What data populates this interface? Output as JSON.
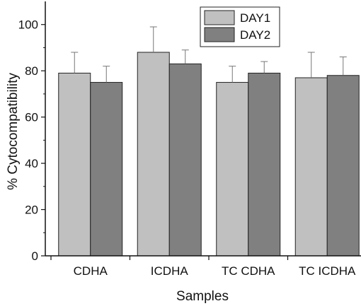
{
  "chart_data": {
    "type": "bar",
    "title": "",
    "xlabel": "Samples",
    "ylabel": "% Cytocompatibility",
    "ylim": [
      0,
      110
    ],
    "yticks": [
      0,
      20,
      40,
      60,
      80,
      100
    ],
    "categories": [
      "CDHA",
      "ICDHA",
      "TC CDHA",
      "TC ICDHA"
    ],
    "series": [
      {
        "name": "DAY1",
        "values": [
          79,
          88,
          75,
          77
        ],
        "errors": [
          9,
          11,
          7,
          11
        ],
        "color": "#c0c0c0"
      },
      {
        "name": "DAY2",
        "values": [
          75,
          83,
          79,
          78
        ],
        "errors": [
          7,
          6,
          5,
          8
        ],
        "color": "#808080"
      }
    ],
    "legend_position": "top-right",
    "grid": false
  }
}
